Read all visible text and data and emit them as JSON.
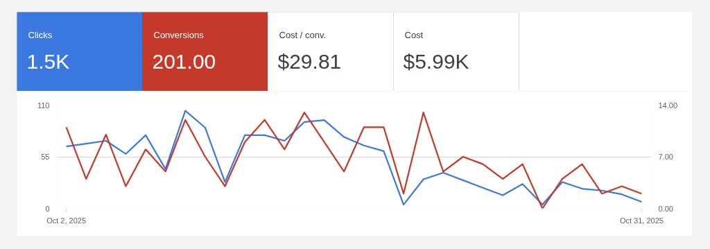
{
  "chart_data": [
    {
      "type": "other",
      "categories": [
        "Clicks",
        "Conversions",
        "Cost / conv.",
        "Cost"
      ],
      "annotations": [
        "1.5K",
        "201.00",
        "$29.81",
        "$5.99K"
      ],
      "colors": [
        "#3b78e0",
        "#c5392b",
        "#ffffff",
        "#ffffff"
      ]
    },
    {
      "type": "line",
      "x": [
        "2025-10-02",
        "2025-10-03",
        "2025-10-04",
        "2025-10-05",
        "2025-10-06",
        "2025-10-07",
        "2025-10-08",
        "2025-10-09",
        "2025-10-10",
        "2025-10-11",
        "2025-10-12",
        "2025-10-13",
        "2025-10-14",
        "2025-10-15",
        "2025-10-16",
        "2025-10-17",
        "2025-10-18",
        "2025-10-19",
        "2025-10-20",
        "2025-10-21",
        "2025-10-22",
        "2025-10-23",
        "2025-10-24",
        "2025-10-25",
        "2025-10-26",
        "2025-10-27",
        "2025-10-28",
        "2025-10-29",
        "2025-10-30",
        "2025-10-31"
      ],
      "series": [
        {
          "color": "#3b78e0",
          "values": [
            66,
            69,
            72,
            58,
            78,
            42,
            104,
            86,
            28,
            78,
            78,
            72,
            92,
            94,
            76,
            67,
            61,
            4,
            31,
            38,
            30,
            22,
            14,
            26,
            4,
            28,
            21,
            19,
            15,
            7
          ]
        },
        {
          "color": "#c5392b",
          "axis": "y2",
          "values": [
            11,
            4,
            10,
            3,
            8,
            5,
            12,
            7,
            3,
            9,
            12,
            8,
            13,
            9,
            5,
            11,
            11,
            2,
            13,
            5,
            7,
            6,
            4,
            6,
            0,
            4,
            6,
            2,
            3,
            2
          ]
        }
      ],
      "xlim": [
        "2025-10-01T13:00",
        "2025-10-31T11:00"
      ],
      "xticks": [
        {
          "value": "2025-10-02",
          "label": "Oct 2, 2025"
        },
        {
          "value": "2025-10-31",
          "label": "Oct 31, 2025"
        }
      ],
      "ylim": [
        0,
        110
      ],
      "yticks": [
        0,
        55,
        110
      ],
      "y2lim": [
        0,
        14
      ],
      "y2ticks": [
        {
          "value": 0,
          "label": "0.00"
        },
        {
          "value": 7,
          "label": "7.00"
        },
        {
          "value": 14,
          "label": "14.00"
        }
      ],
      "grid": "y",
      "line_style": "solid",
      "marker": "none"
    }
  ]
}
